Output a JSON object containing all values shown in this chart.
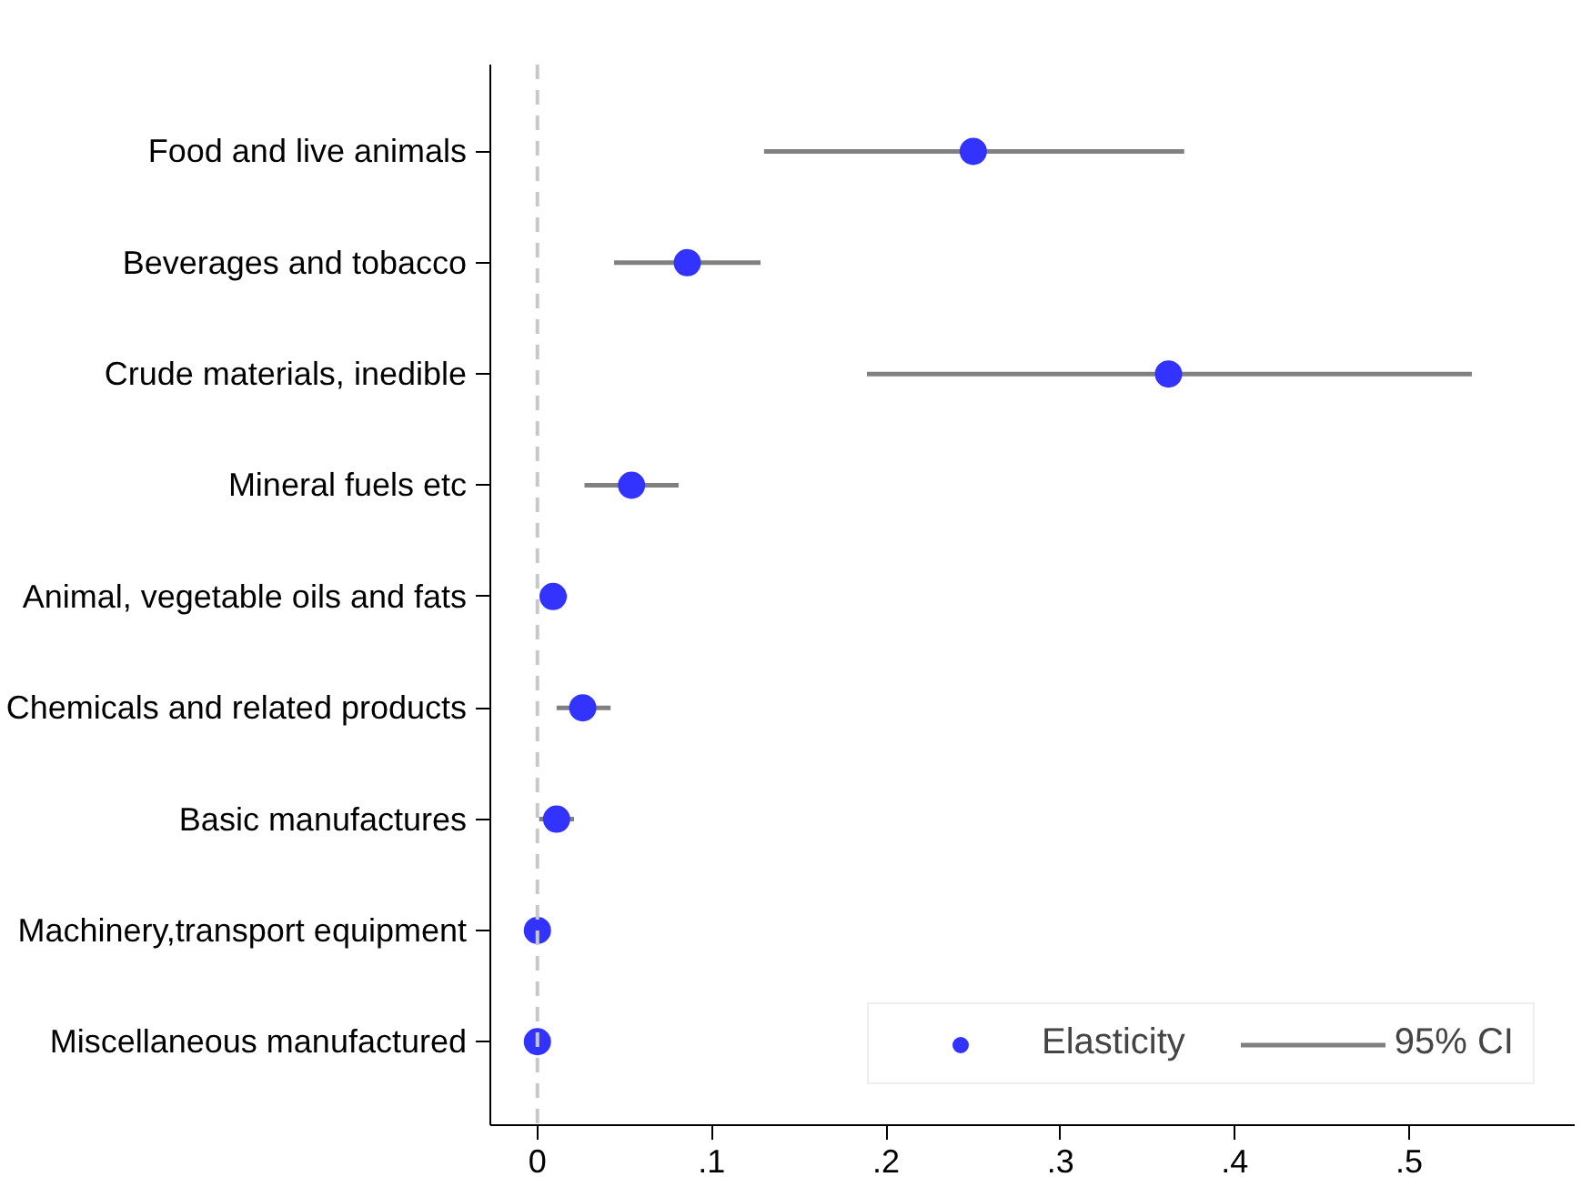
{
  "chart_data": {
    "type": "scatter",
    "orientation": "horizontal",
    "categories": [
      "Food and live animals",
      "Beverages and tobacco",
      "Crude materials, inedible",
      "Mineral fuels etc",
      "Animal, vegetable oils and fats",
      "Chemicals and related products",
      "Basic manufactures",
      "Machinery,transport equipment",
      "Miscellaneous manufactured"
    ],
    "series": [
      {
        "name": "Elasticity",
        "color": "#3333ff",
        "values": [
          0.25,
          0.086,
          0.362,
          0.054,
          0.009,
          0.026,
          0.011,
          0.0,
          0.0
        ],
        "errors": [
          [
            0.13,
            0.371
          ],
          [
            0.044,
            0.128
          ],
          [
            0.189,
            0.536
          ],
          [
            0.027,
            0.081
          ],
          [
            0.002,
            0.017
          ],
          [
            0.011,
            0.042
          ],
          [
            0.001,
            0.021
          ],
          null,
          null
        ]
      }
    ],
    "annotations": [
      "95% CI"
    ],
    "xlim": [
      -0.027,
      0.595
    ],
    "xticks": [
      {
        "value": 0,
        "label": "0"
      },
      {
        "value": 0.1,
        "label": ".1"
      },
      {
        "value": 0.2,
        "label": ".2"
      },
      {
        "value": 0.3,
        "label": ".3"
      },
      {
        "value": 0.4,
        "label": ".4"
      },
      {
        "value": 0.5,
        "label": ".5"
      }
    ],
    "ref_lines": [
      {
        "axis": "x",
        "value": 0,
        "label": null,
        "color": "#c8c8c8",
        "line_style": "dashed"
      }
    ],
    "grid": false,
    "legend": "bottom right",
    "marker": "circle"
  }
}
